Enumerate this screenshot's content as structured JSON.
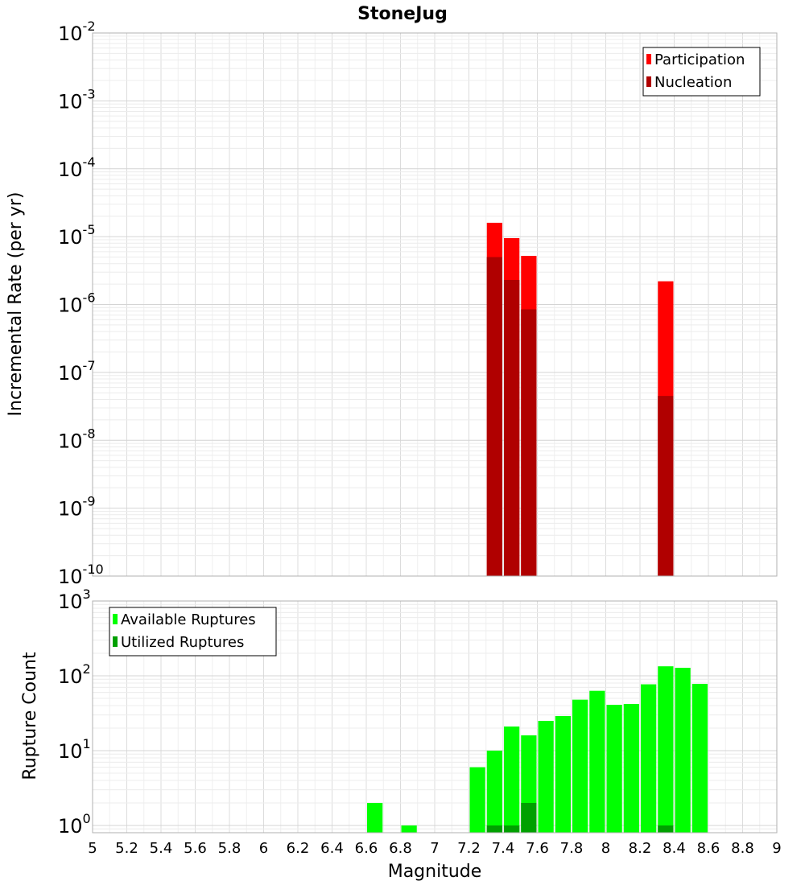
{
  "title": "StoneJug",
  "xlabel": "Magnitude",
  "x_ticks": [
    "5",
    "5.2",
    "5.4",
    "5.6",
    "5.8",
    "6",
    "6.2",
    "6.4",
    "6.6",
    "6.8",
    "7",
    "7.2",
    "7.4",
    "7.6",
    "7.8",
    "8",
    "8.2",
    "8.4",
    "8.6",
    "8.8",
    "9"
  ],
  "chart_data": [
    {
      "type": "bar",
      "panel": "top",
      "title": "StoneJug",
      "xlabel": "Magnitude",
      "ylabel": "Incremental Rate (per yr)",
      "yscale": "log",
      "xlim": [
        5,
        9
      ],
      "ylim": [
        1e-10,
        0.01
      ],
      "y_tick_bases": [
        "10",
        "10",
        "10",
        "10",
        "10",
        "10",
        "10",
        "10",
        "10"
      ],
      "y_tick_exponents": [
        "-10",
        "-9",
        "-8",
        "-7",
        "-6",
        "-5",
        "-4",
        "-3",
        "-2"
      ],
      "bin_width": 0.1,
      "legend_position": "top-right",
      "series": [
        {
          "name": "Participation",
          "color": "#ff0000",
          "x": [
            7.35,
            7.45,
            7.55,
            8.35
          ],
          "values": [
            1.6e-05,
            9.5e-06,
            5.2e-06,
            2.2e-06
          ]
        },
        {
          "name": "Nucleation",
          "color": "#b00000",
          "x": [
            7.35,
            7.45,
            7.55,
            8.35
          ],
          "values": [
            5e-06,
            2.3e-06,
            8.5e-07,
            4.5e-08
          ]
        }
      ]
    },
    {
      "type": "bar",
      "panel": "bottom",
      "xlabel": "Magnitude",
      "ylabel": "Rupture Count",
      "yscale": "log",
      "xlim": [
        5,
        9
      ],
      "ylim": [
        0.8,
        1000
      ],
      "y_tick_bases": [
        "10",
        "10",
        "10",
        "10"
      ],
      "y_tick_exponents": [
        "0",
        "1",
        "2",
        "3"
      ],
      "bin_width": 0.1,
      "legend_position": "top-left",
      "series": [
        {
          "name": "Available Ruptures",
          "color": "#00ff00",
          "x": [
            6.65,
            6.85,
            7.25,
            7.35,
            7.45,
            7.55,
            7.65,
            7.75,
            7.85,
            7.95,
            8.05,
            8.15,
            8.25,
            8.35,
            8.45,
            8.55
          ],
          "values": [
            2,
            1,
            6,
            10,
            21,
            16,
            25,
            29,
            48,
            63,
            41,
            42,
            77,
            134,
            128,
            78
          ]
        },
        {
          "name": "Utilized Ruptures",
          "color": "#00a000",
          "x": [
            7.35,
            7.45,
            7.55,
            8.35
          ],
          "values": [
            1,
            1,
            2,
            1
          ]
        }
      ]
    }
  ]
}
